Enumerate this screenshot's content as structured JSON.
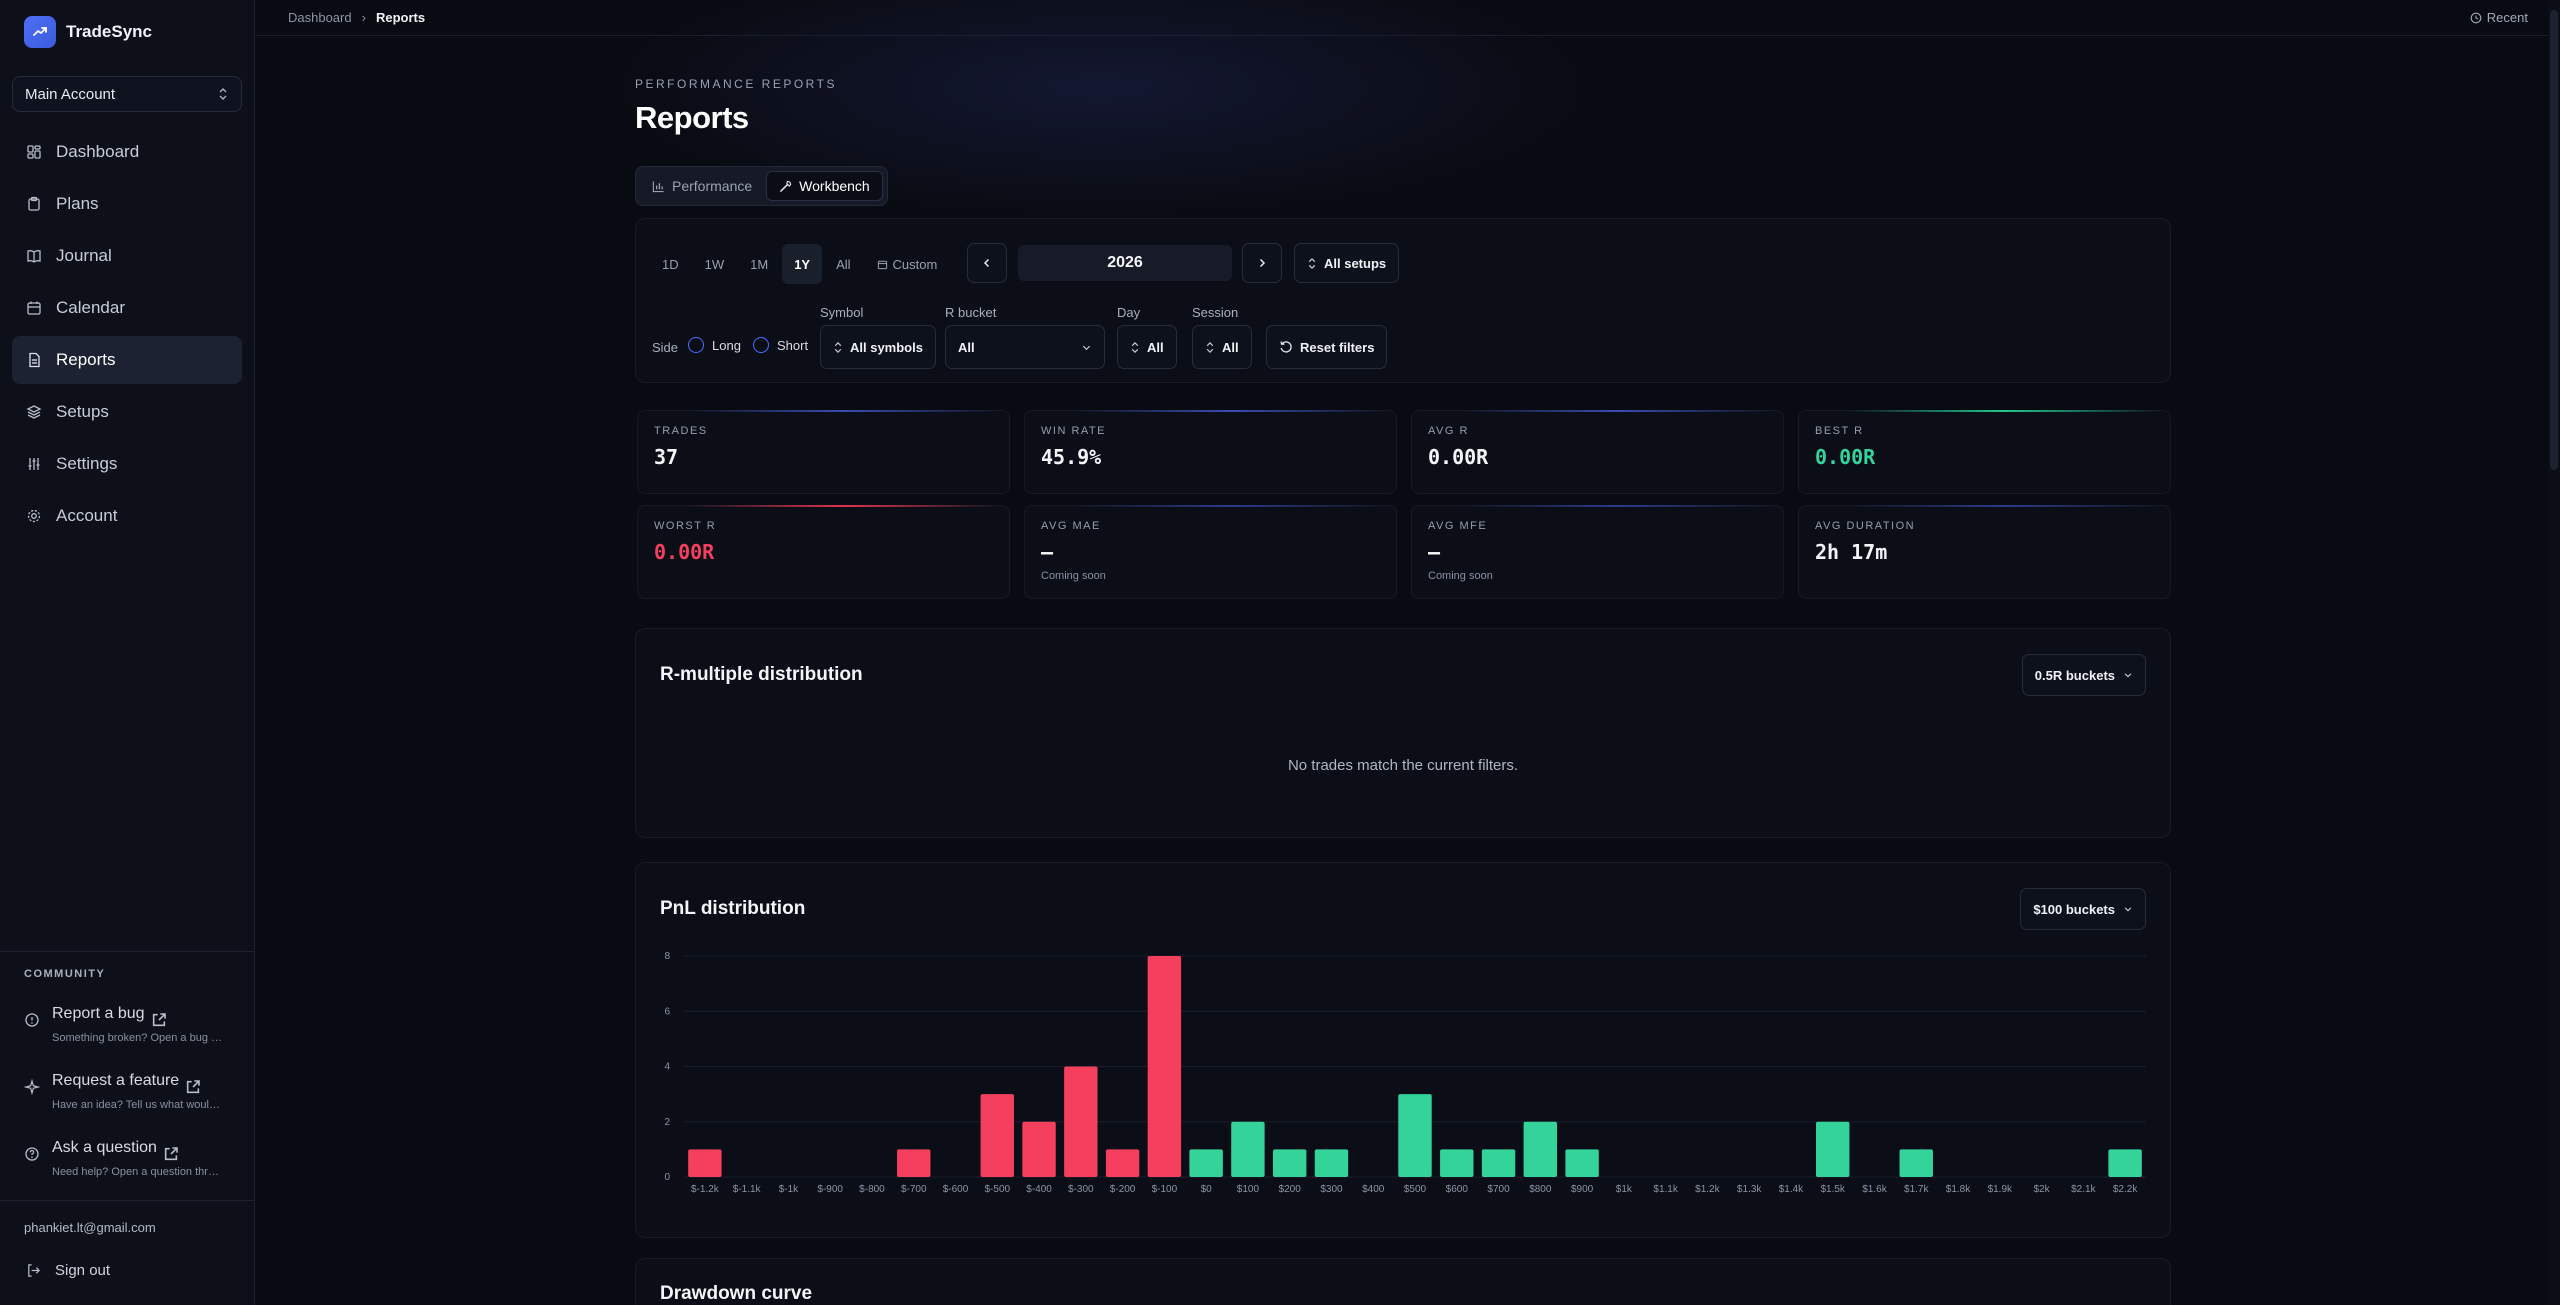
{
  "brand": {
    "name": "TradeSync"
  },
  "account": {
    "selected": "Main Account"
  },
  "nav": {
    "items": [
      {
        "label": "Dashboard",
        "icon": "dashboard-icon",
        "active": false
      },
      {
        "label": "Plans",
        "icon": "clipboard-icon",
        "active": false
      },
      {
        "label": "Journal",
        "icon": "book-icon",
        "active": false
      },
      {
        "label": "Calendar",
        "icon": "calendar-icon",
        "active": false
      },
      {
        "label": "Reports",
        "icon": "reports-icon",
        "active": true
      },
      {
        "label": "Setups",
        "icon": "layers-icon",
        "active": false
      },
      {
        "label": "Settings",
        "icon": "sliders-icon",
        "active": false
      },
      {
        "label": "Account",
        "icon": "gear-icon",
        "active": false
      }
    ]
  },
  "community": {
    "label": "COMMUNITY",
    "items": [
      {
        "title": "Report a bug",
        "sub": "Something broken? Open a bug re...",
        "icon": "alert-circle-icon"
      },
      {
        "title": "Request a feature",
        "sub": "Have an idea? Tell us what would ...",
        "icon": "sparkle-icon"
      },
      {
        "title": "Ask a question",
        "sub": "Need help? Open a question threa...",
        "icon": "help-circle-icon"
      }
    ]
  },
  "user": {
    "email": "phankiet.lt@gmail.com",
    "signout": "Sign out"
  },
  "breadcrumb": {
    "parent": "Dashboard",
    "current": "Reports"
  },
  "topbar": {
    "recent": "Recent"
  },
  "header": {
    "eyebrow": "PERFORMANCE REPORTS",
    "title": "Reports"
  },
  "tabs": [
    {
      "label": "Performance",
      "active": false
    },
    {
      "label": "Workbench",
      "active": true
    }
  ],
  "filters": {
    "ranges": [
      "1D",
      "1W",
      "1M",
      "1Y",
      "All",
      "Custom"
    ],
    "active_range": "1Y",
    "year": "2026",
    "setups": "All setups",
    "side_label": "Side",
    "side_long": "Long",
    "side_short": "Short",
    "symbol_label": "Symbol",
    "symbol_value": "All symbols",
    "rbucket_label": "R bucket",
    "rbucket_value": "All",
    "day_label": "Day",
    "day_value": "All",
    "session_label": "Session",
    "session_value": "All",
    "reset": "Reset filters"
  },
  "stats": [
    {
      "label": "TRADES",
      "value": "37",
      "sub": "",
      "color": "#f4f5f8",
      "accent": "#3b4bb0"
    },
    {
      "label": "WIN RATE",
      "value": "45.9%",
      "sub": "",
      "color": "#f4f5f8",
      "accent": "#3b4bb0"
    },
    {
      "label": "AVG R",
      "value": "0.00R",
      "sub": "",
      "color": "#f4f5f8",
      "accent": "#3b4bb0"
    },
    {
      "label": "BEST R",
      "value": "0.00R",
      "sub": "",
      "color": "#34d399",
      "accent": "#22c58b"
    },
    {
      "label": "WORST R",
      "value": "0.00R",
      "sub": "",
      "color": "#f43f5e",
      "accent": "#e0334f"
    },
    {
      "label": "AVG MAE",
      "value": "—",
      "sub": "Coming soon",
      "color": "#f4f5f8",
      "accent": "#2c3a8a"
    },
    {
      "label": "AVG MFE",
      "value": "—",
      "sub": "Coming soon",
      "color": "#f4f5f8",
      "accent": "#2c3a8a"
    },
    {
      "label": "AVG DURATION",
      "value": "2h 17m",
      "sub": "",
      "color": "#f4f5f8",
      "accent": "#2c3a8a"
    }
  ],
  "rdist": {
    "title": "R-multiple distribution",
    "bucket": "0.5R buckets",
    "empty": "No trades match the current filters."
  },
  "pnl": {
    "title": "PnL distribution",
    "bucket": "$100 buckets"
  },
  "drawdown": {
    "title": "Drawdown curve"
  },
  "colors": {
    "loss": "#f43f5e",
    "win": "#34d399"
  },
  "chart_data": {
    "type": "bar",
    "title": "PnL distribution",
    "categories": [
      "$-1.2k",
      "$-1.1k",
      "$-1k",
      "$-900",
      "$-800",
      "$-700",
      "$-600",
      "$-500",
      "$-400",
      "$-300",
      "$-200",
      "$-100",
      "$0",
      "$100",
      "$200",
      "$300",
      "$400",
      "$500",
      "$600",
      "$700",
      "$800",
      "$900",
      "$1k",
      "$1.1k",
      "$1.2k",
      "$1.3k",
      "$1.4k",
      "$1.5k",
      "$1.6k",
      "$1.7k",
      "$1.8k",
      "$1.9k",
      "$2k",
      "$2.1k",
      "$2.2k"
    ],
    "values": [
      1,
      0,
      0,
      0,
      0,
      1,
      0,
      3,
      2,
      4,
      1,
      8,
      1,
      2,
      1,
      1,
      0,
      3,
      1,
      1,
      2,
      1,
      0,
      0,
      0,
      0,
      0,
      2,
      0,
      1,
      0,
      0,
      0,
      0,
      1
    ],
    "yticks": [
      0,
      2,
      4,
      6,
      8
    ],
    "ylim": [
      0,
      8
    ],
    "grid": true
  }
}
